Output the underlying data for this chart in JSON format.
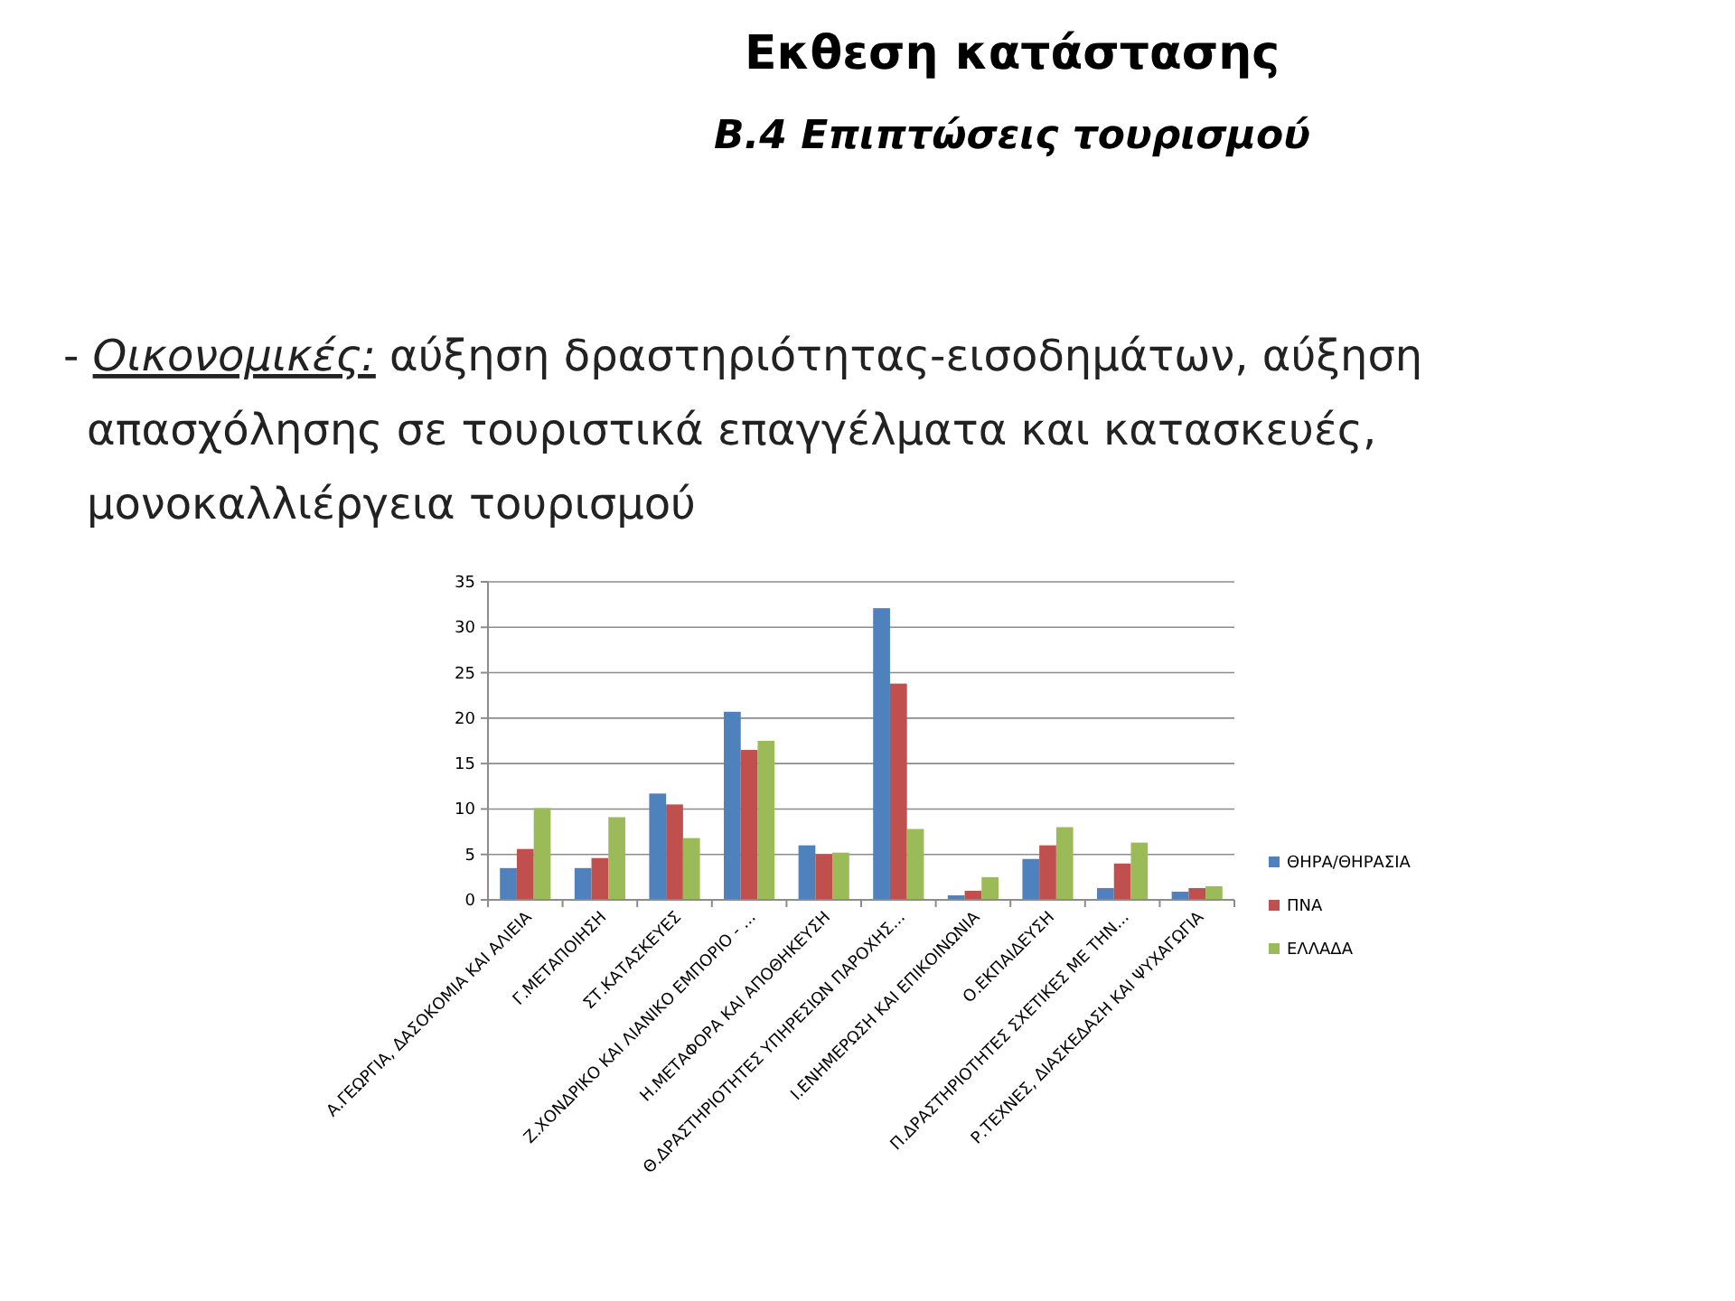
{
  "chart_data": {
    "type": "bar",
    "title": "Εκθεση κατάστασης",
    "subtitle": "Β.4 Επιπτώσεις τουρισμού",
    "annotations": [
      "- Οικονομικές: αύξηση δραστηριότητας-εισοδημάτων, αύξηση απασχόλησης σε τουριστικά επαγγέλματα και κατασκευές, μονοκαλλιέργεια τουρισμού"
    ],
    "categories": [
      "Α.ΓΕΩΡΓΙΑ, ΔΑΣΟΚΟΜΙΑ ΚΑΙ ΑΛΙΕΙΑ",
      "Γ.ΜΕΤΑΠΟΙΗΣΗ",
      "ΣΤ.ΚΑΤΑΣΚΕΥΕΣ",
      "Ζ.ΧΟΝΔΡΙΚΟ ΚΑΙ ΛΙΑΝΙΚΟ ΕΜΠΟΡΙΟ - ...",
      "Η.ΜΕΤΑΦΟΡΑ ΚΑΙ ΑΠΟΘΗΚΕΥΣΗ",
      "Θ.ΔΡΑΣΤΗΡΙΟΤΗΤΕΣ ΥΠΗΡΕΣΙΩΝ ΠΑΡΟΧΗΣ...",
      "Ι.ΕΝΗΜΕΡΩΣΗ ΚΑΙ ΕΠΙΚΟΙΝΩΝΙΑ",
      "Ο.ΕΚΠΑΙΔΕΥΣΗ",
      "Π.ΔΡΑΣΤΗΡΙΟΤΗΤΕΣ ΣΧΕΤΙΚΕΣ ΜΕ ΤΗΝ...",
      "Ρ.ΤΕΧΝΕΣ, ΔΙΑΣΚΕΔΑΣΗ ΚΑΙ ΨΥΧΑΓΩΓΙΑ"
    ],
    "series": [
      {
        "name": "ΘΗΡΑ/ΘΗΡΑΣΙΑ",
        "color": "#4f81bd",
        "values": [
          3.5,
          3.5,
          11.7,
          20.7,
          6.0,
          32.1,
          0.5,
          4.5,
          1.3,
          0.9
        ]
      },
      {
        "name": "ΠΝΑ",
        "color": "#c0504d",
        "values": [
          5.6,
          4.6,
          10.5,
          16.5,
          5.0,
          23.8,
          1.0,
          6.0,
          4.0,
          1.3
        ]
      },
      {
        "name": "ΕΛΛΑΔΑ",
        "color": "#9bbb59",
        "values": [
          10.1,
          9.1,
          6.8,
          17.5,
          5.2,
          7.8,
          2.5,
          8.0,
          6.3,
          1.5
        ]
      }
    ],
    "ylim": [
      0,
      35
    ],
    "yticks": [
      0,
      5,
      10,
      15,
      20,
      25,
      30,
      35
    ],
    "grid": "y",
    "legend": "right"
  }
}
